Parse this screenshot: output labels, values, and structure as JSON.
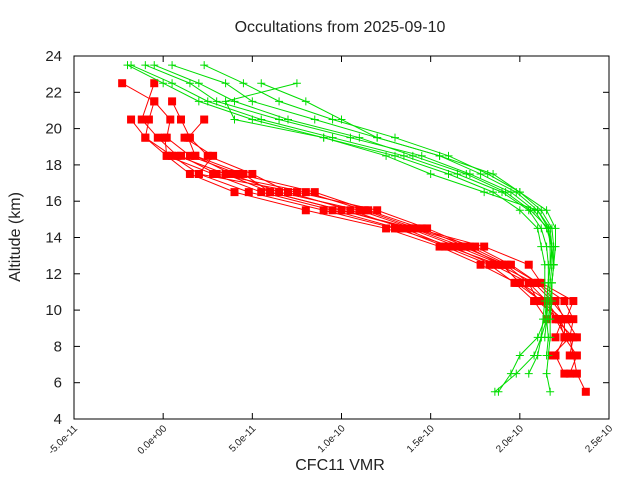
{
  "chart_data": {
    "type": "line",
    "title": "Occultations from 2025-09-10",
    "xlabel": "CFC11 VMR",
    "ylabel": "Altitude (km)",
    "xlim": [
      -5e-11,
      2.5e-10
    ],
    "ylim": [
      4,
      24
    ],
    "xticks": [
      -5e-11,
      0,
      5e-11,
      1e-10,
      1.5e-10,
      2e-10,
      2.5e-10
    ],
    "xtick_labels": [
      "-5.0e-11",
      "0.0e+00",
      "5.0e-11",
      "1.0e-10",
      "1.5e-10",
      "2.0e-10",
      "2.5e-10"
    ],
    "yticks": [
      4,
      6,
      8,
      10,
      12,
      14,
      16,
      18,
      20,
      22,
      24
    ],
    "ytick_labels": [
      "4",
      "6",
      "8",
      "10",
      "12",
      "14",
      "16",
      "18",
      "20",
      "22",
      "24"
    ],
    "grid": false,
    "legend": "none",
    "series": [
      {
        "name": "red-profile-1",
        "color": "#ff0000",
        "marker": "square",
        "altitude": [
          22.5,
          21.5,
          20.5,
          19.5,
          18.5,
          17.5,
          16.5,
          15.5,
          14.5,
          13.5,
          12.5,
          11.5,
          10.5,
          9.5,
          8.5,
          7.5,
          6.5,
          5.5
        ],
        "vmr": [
          -2.3e-11,
          -5e-12,
          -8e-12,
          -1e-11,
          5e-12,
          2e-11,
          4.8e-11,
          9e-11,
          1.3e-10,
          1.62e-10,
          1.85e-10,
          2.05e-10,
          2.15e-10,
          2.22e-10,
          2.28e-10,
          2.3e-10,
          2.32e-10,
          2.37e-10
        ]
      },
      {
        "name": "red-profile-2",
        "color": "#ff0000",
        "marker": "square",
        "altitude": [
          22.5,
          20.5,
          19.5,
          18.5,
          17.5,
          16.5,
          15.5,
          14.5,
          13.5,
          12.5,
          11.5,
          10.5,
          9.5,
          8.5,
          7.5,
          6.5
        ],
        "vmr": [
          -5e-12,
          -1.2e-11,
          -3e-12,
          8e-12,
          3.5e-11,
          6e-11,
          1e-10,
          1.4e-10,
          1.75e-10,
          1.95e-10,
          2.1e-10,
          2.2e-10,
          2.25e-10,
          2.25e-10,
          2.2e-10,
          2.25e-10
        ]
      },
      {
        "name": "red-profile-3",
        "color": "#ff0000",
        "marker": "square",
        "altitude": [
          21.5,
          20.5,
          19.5,
          18.5,
          17.5,
          16.5,
          15.5,
          14.5,
          13.5,
          12.5,
          11.5,
          10.5,
          9.5,
          8.5,
          7.5
        ],
        "vmr": [
          -5e-12,
          4e-12,
          2e-12,
          1.5e-11,
          4.2e-11,
          8.5e-11,
          1.15e-10,
          1.45e-10,
          1.7e-10,
          1.9e-10,
          2e-10,
          2.12e-10,
          2.2e-10,
          2.3e-10,
          2.28e-10
        ]
      },
      {
        "name": "red-profile-4",
        "color": "#ff0000",
        "marker": "square",
        "altitude": [
          21.5,
          20.5,
          19.5,
          18.5,
          17.5,
          16.5,
          15.5,
          14.5,
          13.5,
          12.5,
          11.5,
          10.5,
          9.5,
          8.5
        ],
        "vmr": [
          5e-12,
          1e-11,
          1.5e-11,
          2.5e-11,
          5e-11,
          7e-11,
          1.05e-10,
          1.35e-10,
          1.6e-10,
          1.88e-10,
          2.08e-10,
          2.18e-10,
          2.26e-10,
          2.32e-10
        ]
      },
      {
        "name": "red-profile-5",
        "color": "#ff0000",
        "marker": "square",
        "altitude": [
          20.5,
          19.5,
          18.5,
          17.5,
          16.5,
          15.5,
          14.5,
          13.5,
          12.5,
          11.5,
          10.5,
          9.5,
          8.5,
          7.5,
          6.5
        ],
        "vmr": [
          2.3e-11,
          1.4e-11,
          1.8e-11,
          3.8e-11,
          6.5e-11,
          1.1e-10,
          1.4e-10,
          1.68e-10,
          1.92e-10,
          2.05e-10,
          2.1e-10,
          2.22e-10,
          2.25e-10,
          2.32e-10,
          2.28e-10
        ]
      },
      {
        "name": "red-profile-6",
        "color": "#ff0000",
        "marker": "square",
        "altitude": [
          20.5,
          19.5,
          18.5,
          17.5,
          16.5,
          15.5,
          14.5,
          13.5,
          12.5,
          11.5,
          10.5,
          9.5
        ],
        "vmr": [
          -1.8e-11,
          -1e-11,
          2e-12,
          2.8e-11,
          5.5e-11,
          9.5e-11,
          1.32e-10,
          1.58e-10,
          1.83e-10,
          1.97e-10,
          2.08e-10,
          2.15e-10
        ]
      },
      {
        "name": "red-profile-7",
        "color": "#ff0000",
        "marker": "square",
        "altitude": [
          19.5,
          18.5,
          17.5,
          16.5,
          15.5,
          14.5,
          13.5,
          12.5,
          11.5,
          10.5,
          9.5,
          8.5
        ],
        "vmr": [
          1e-12,
          2e-12,
          1.5e-11,
          4e-11,
          8e-11,
          1.25e-10,
          1.55e-10,
          1.78e-10,
          1.98e-10,
          2.12e-10,
          2.24e-10,
          2.2e-10
        ]
      },
      {
        "name": "red-profile-8",
        "color": "#ff0000",
        "marker": "square",
        "altitude": [
          19.5,
          18.5,
          17.5,
          16.5,
          15.5,
          14.5,
          13.5,
          12.5,
          11.5,
          10.5,
          9.5,
          8.5,
          7.5
        ],
        "vmr": [
          1.2e-11,
          2.8e-11,
          2e-11,
          7.5e-11,
          1.2e-10,
          1.48e-10,
          1.72e-10,
          1.93e-10,
          2.1e-10,
          2.25e-10,
          2.3e-10,
          2.28e-10,
          2.18e-10
        ]
      },
      {
        "name": "red-profile-9",
        "color": "#ff0000",
        "marker": "square",
        "altitude": [
          18.5,
          17.5,
          16.5,
          15.5,
          14.5,
          13.5,
          12.5,
          11.5,
          10.5,
          9.5
        ],
        "vmr": [
          1e-11,
          3e-11,
          8e-11,
          1.13e-10,
          1.42e-10,
          1.8e-10,
          2.05e-10,
          2.12e-10,
          2.3e-10,
          2.26e-10
        ]
      },
      {
        "name": "red-profile-10",
        "color": "#ff0000",
        "marker": "square",
        "altitude": [
          18.5,
          17.5,
          16.5,
          15.5,
          14.5,
          13.5,
          12.5,
          11.5,
          10.5,
          9.5,
          8.5
        ],
        "vmr": [
          1.8e-11,
          4.5e-11,
          6e-11,
          1e-10,
          1.38e-10,
          1.65e-10,
          1.9e-10,
          2e-10,
          2.16e-10,
          2.2e-10,
          2.26e-10
        ]
      },
      {
        "name": "green-profile-1",
        "color": "#00dd00",
        "marker": "plus",
        "altitude": [
          23.5,
          22.5,
          21.5,
          20.5,
          19.5,
          18.5,
          17.5,
          16.5,
          15.5,
          14.5,
          13.5,
          12.5,
          11.5,
          10.5,
          9.5,
          8.5,
          7.5,
          6.5
        ],
        "vmr": [
          -2e-11,
          0,
          2e-11,
          5e-11,
          9e-11,
          1.3e-10,
          1.6e-10,
          1.85e-10,
          2e-10,
          2.1e-10,
          2.12e-10,
          2.14e-10,
          2.14e-10,
          2.14e-10,
          2.13e-10,
          2.12e-10,
          2.1e-10,
          2.05e-10
        ]
      },
      {
        "name": "green-profile-2",
        "color": "#00dd00",
        "marker": "plus",
        "altitude": [
          23.5,
          22.5,
          21.5,
          20.5,
          19.5,
          18.5,
          17.5,
          16.5,
          15.5,
          14.5,
          13.5,
          12.5,
          11.5,
          10.5,
          9.5,
          8.5,
          7.5,
          6.5,
          5.5
        ],
        "vmr": [
          -1.8e-11,
          5e-12,
          2.5e-11,
          5.5e-11,
          9.5e-11,
          1.35e-10,
          1.65e-10,
          1.9e-10,
          2.05e-10,
          2.12e-10,
          2.15e-10,
          2.16e-10,
          2.16e-10,
          2.15e-10,
          2.14e-10,
          2.1e-10,
          2e-10,
          1.95e-10,
          1.88e-10
        ]
      },
      {
        "name": "green-profile-3",
        "color": "#00dd00",
        "marker": "plus",
        "altitude": [
          23.5,
          22.5,
          21.5,
          20.5,
          19.5,
          18.5,
          17.5,
          16.5,
          15.5,
          14.5,
          13.5,
          12.5,
          11.5,
          10.5,
          9.5,
          8.5,
          7.5,
          6.5,
          5.5
        ],
        "vmr": [
          -1e-11,
          1.5e-11,
          3e-11,
          6.5e-11,
          1.05e-10,
          1.45e-10,
          1.72e-10,
          1.95e-10,
          2.08e-10,
          2.15e-10,
          2.18e-10,
          2.18e-10,
          2.17e-10,
          2.16e-10,
          2.15e-10,
          2.12e-10,
          2.08e-10,
          1.98e-10,
          1.86e-10
        ]
      },
      {
        "name": "green-profile-4",
        "color": "#00dd00",
        "marker": "plus",
        "altitude": [
          23.5,
          22.5,
          21.5,
          20.5,
          19.5,
          18.5,
          17.5,
          16.5,
          15.5,
          14.5,
          13.5,
          12.5,
          11.5,
          10.5,
          9.5,
          8.5,
          7.5,
          6.5,
          5.5
        ],
        "vmr": [
          -5e-12,
          2e-11,
          4e-11,
          7e-11,
          1.1e-10,
          1.4e-10,
          1.7e-10,
          1.92e-10,
          2.06e-10,
          2.16e-10,
          2.18e-10,
          2.19e-10,
          2.18e-10,
          2.17e-10,
          2.17e-10,
          2.17e-10,
          2.16e-10,
          2.15e-10,
          2.17e-10
        ]
      },
      {
        "name": "green-profile-5",
        "color": "#00dd00",
        "marker": "plus",
        "altitude": [
          23.5,
          22.5,
          21.5,
          20.5,
          19.5,
          18.5,
          17.5,
          16.5,
          15.5,
          14.5,
          13.5,
          12.5,
          11.5,
          10.5,
          9.5,
          8.5,
          7.5
        ],
        "vmr": [
          5e-12,
          3.5e-11,
          5e-11,
          8.5e-11,
          1.2e-10,
          1.55e-10,
          1.78e-10,
          1.98e-10,
          2.1e-10,
          2.16e-10,
          2.17e-10,
          2.17e-10,
          2.16e-10,
          2.15e-10,
          2.15e-10,
          2.16e-10,
          2.15e-10
        ]
      },
      {
        "name": "green-profile-6",
        "color": "#00dd00",
        "marker": "plus",
        "altitude": [
          23.5,
          22.5,
          21.5,
          20.5,
          19.5,
          18.5,
          17.5,
          16.5,
          15.5,
          14.5,
          13.5,
          12.5,
          11.5,
          10.5,
          9.5
        ],
        "vmr": [
          2.3e-11,
          4.5e-11,
          6.5e-11,
          9.5e-11,
          1.3e-10,
          1.6e-10,
          1.82e-10,
          2e-10,
          2.12e-10,
          2.18e-10,
          2.19e-10,
          2.19e-10,
          2.18e-10,
          2.17e-10,
          2.16e-10
        ]
      },
      {
        "name": "green-profile-7",
        "color": "#00dd00",
        "marker": "plus",
        "altitude": [
          22.5,
          21.5,
          20.5,
          19.5,
          18.5,
          17.5,
          16.5,
          15.5,
          14.5,
          13.5,
          12.5,
          11.5,
          10.5,
          9.5
        ],
        "vmr": [
          5.5e-11,
          8e-11,
          1e-10,
          1.2e-10,
          1.55e-10,
          1.85e-10,
          2e-10,
          2.15e-10,
          2.2e-10,
          2.2e-10,
          2.19e-10,
          2.18e-10,
          2.18e-10,
          2.17e-10
        ]
      },
      {
        "name": "green-profile-8",
        "color": "#00dd00",
        "marker": "plus",
        "altitude": [
          22.5,
          21.5,
          20.5,
          19.5,
          18.5,
          17.5,
          16.5,
          15.5,
          14.5,
          13.5,
          12.5,
          11.5,
          10.5,
          9.5,
          8.5
        ],
        "vmr": [
          7.5e-11,
          3.5e-11,
          4e-11,
          9e-11,
          1.25e-10,
          1.5e-10,
          1.8e-10,
          2.1e-10,
          2.17e-10,
          2.18e-10,
          2.17e-10,
          2.16e-10,
          2.15e-10,
          2.15e-10,
          2.14e-10
        ]
      }
    ]
  }
}
